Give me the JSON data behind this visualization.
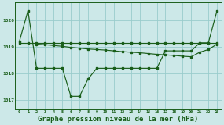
{
  "background_color": "#cce8e8",
  "grid_color": "#99cccc",
  "line_color": "#1a5e1a",
  "xlabel": "Graphe pression niveau de la mer (hPa)",
  "xlabel_fontsize": 6.5,
  "ylabel_ticks": [
    1017,
    1018,
    1019,
    1020
  ],
  "xlim": [
    -0.5,
    23.5
  ],
  "ylim": [
    1016.65,
    1020.65
  ],
  "series1_x": [
    0,
    1,
    2,
    3,
    4,
    5,
    6,
    7,
    8,
    9,
    10,
    11,
    12,
    13,
    14,
    15,
    16,
    17,
    18,
    19,
    20,
    21,
    22,
    23
  ],
  "series1_y": [
    1019.2,
    1020.35,
    1018.2,
    1018.2,
    1018.2,
    1018.2,
    1017.15,
    1017.15,
    1017.8,
    1018.2,
    1018.2,
    1018.2,
    1018.2,
    1018.2,
    1018.2,
    1018.2,
    1018.2,
    1018.85,
    1018.85,
    1018.85,
    1018.85,
    1019.15,
    1019.15,
    1020.35
  ],
  "series2_x": [
    0,
    1,
    2,
    3,
    4,
    5,
    6,
    7,
    8,
    9,
    10,
    11,
    12,
    13,
    14,
    15,
    16,
    17,
    18,
    19,
    20,
    21,
    22,
    23
  ],
  "series2_y": [
    1019.15,
    1019.15,
    1019.15,
    1019.15,
    1019.15,
    1019.15,
    1019.15,
    1019.15,
    1019.15,
    1019.15,
    1019.15,
    1019.15,
    1019.15,
    1019.15,
    1019.15,
    1019.15,
    1019.15,
    1019.15,
    1019.15,
    1019.15,
    1019.15,
    1019.15,
    1019.15,
    1019.15
  ],
  "series3_x": [
    2,
    3,
    4,
    5,
    6,
    7,
    8,
    9,
    10,
    11,
    12,
    13,
    14,
    15,
    16,
    17,
    18,
    19,
    20,
    21,
    22,
    23
  ],
  "series3_y": [
    1019.1,
    1019.08,
    1019.05,
    1019.02,
    1018.98,
    1018.95,
    1018.92,
    1018.9,
    1018.88,
    1018.85,
    1018.82,
    1018.8,
    1018.78,
    1018.75,
    1018.72,
    1018.7,
    1018.68,
    1018.65,
    1018.63,
    1018.8,
    1018.9,
    1019.1
  ]
}
